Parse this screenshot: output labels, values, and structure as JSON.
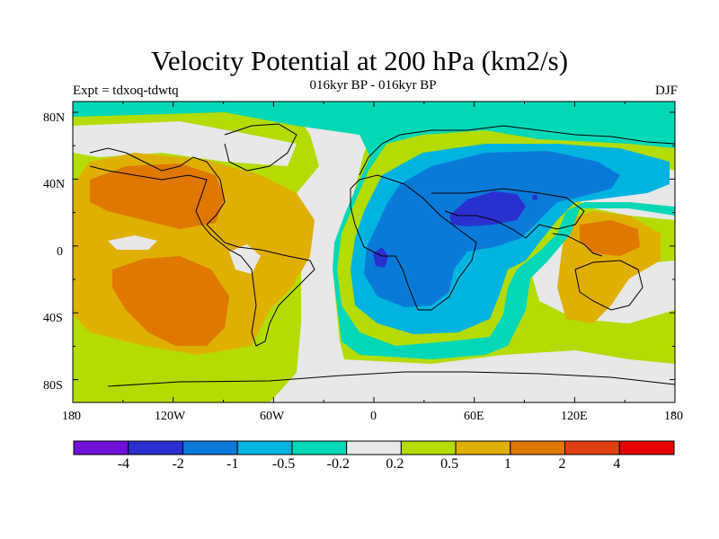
{
  "title": "Velocity Potential at 200 hPa (km2/s)",
  "subtitle": "016kyr BP - 016kyr BP",
  "left_label": "Expt = tdxoq-tdwtq",
  "right_label": "DJF",
  "lat_labels": [
    "80N",
    "40N",
    "0",
    "40S",
    "80S"
  ],
  "lon_labels": [
    "180",
    "120W",
    "60W",
    "0",
    "60E",
    "120E",
    "180"
  ],
  "colorbar": {
    "colors": [
      "#7010d8",
      "#2a2fd0",
      "#0a7ad8",
      "#00b4e0",
      "#00d8b8",
      "#e8e8e8",
      "#b4dc00",
      "#e0b000",
      "#e07800",
      "#e04010",
      "#e80000"
    ],
    "labels": [
      "-4",
      "-2",
      "-1",
      "-0.5",
      "-0.2",
      "0.2",
      "0.5",
      "1",
      "2",
      "4"
    ]
  }
}
